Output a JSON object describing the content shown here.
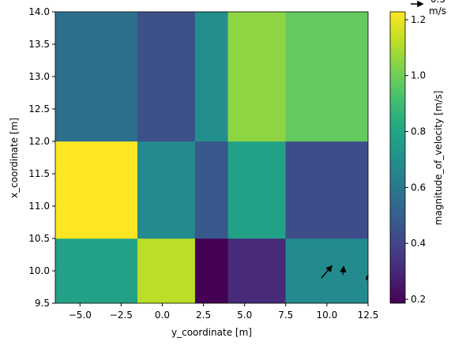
{
  "chart_data": {
    "type": "heatmap",
    "x_label": "y_coordinate [m]",
    "y_label": "x_coordinate [m]",
    "colorbar_label": "magnitude_of_velocity [m/s]",
    "colormap": "viridis",
    "x_edges": [
      -6.5,
      -1.5,
      2.0,
      4.0,
      7.5,
      12.5
    ],
    "y_edges": [
      9.5,
      10.5,
      12.0,
      14.0
    ],
    "values": [
      [
        0.78,
        1.12,
        0.186,
        0.31,
        0.68
      ],
      [
        1.228,
        0.68,
        0.47,
        0.78,
        0.43
      ],
      [
        0.57,
        0.44,
        0.7,
        1.05,
        0.98
      ]
    ],
    "xlim": [
      -6.5,
      12.5
    ],
    "ylim": [
      9.5,
      14.0
    ],
    "clim": [
      0.186,
      1.228
    ],
    "xticks": [
      {
        "value": -5,
        "label": "−5.0"
      },
      {
        "value": -2.5,
        "label": "−2.5"
      },
      {
        "value": 0,
        "label": "0.0"
      },
      2.5,
      {
        "value": 5,
        "label": "5.0"
      },
      7.5,
      {
        "value": 10,
        "label": "10.0"
      },
      12.5
    ],
    "yticks": [
      9.5,
      {
        "value": 10,
        "label": "10.0"
      },
      10.5,
      {
        "value": 11,
        "label": "11.0"
      },
      11.5,
      {
        "value": 12,
        "label": "12.0"
      },
      12.5,
      {
        "value": 13,
        "label": "13.0"
      },
      13.5,
      {
        "value": 14,
        "label": "14.0"
      }
    ],
    "cticks": [
      0.2,
      0.4,
      0.6,
      0.8,
      {
        "value": 1,
        "label": "1.0"
      },
      1.2
    ],
    "quiver": {
      "x": [
        9.67,
        10.97,
        12.5
      ],
      "y": [
        9.89,
        9.94,
        9.89
      ],
      "u": [
        0.43,
        0.03,
        -0.07
      ],
      "v": [
        0.5,
        0.33,
        0.02
      ],
      "color": "#000000"
    },
    "quiver_key": {
      "value": 0.5,
      "unit": "m/s"
    }
  }
}
